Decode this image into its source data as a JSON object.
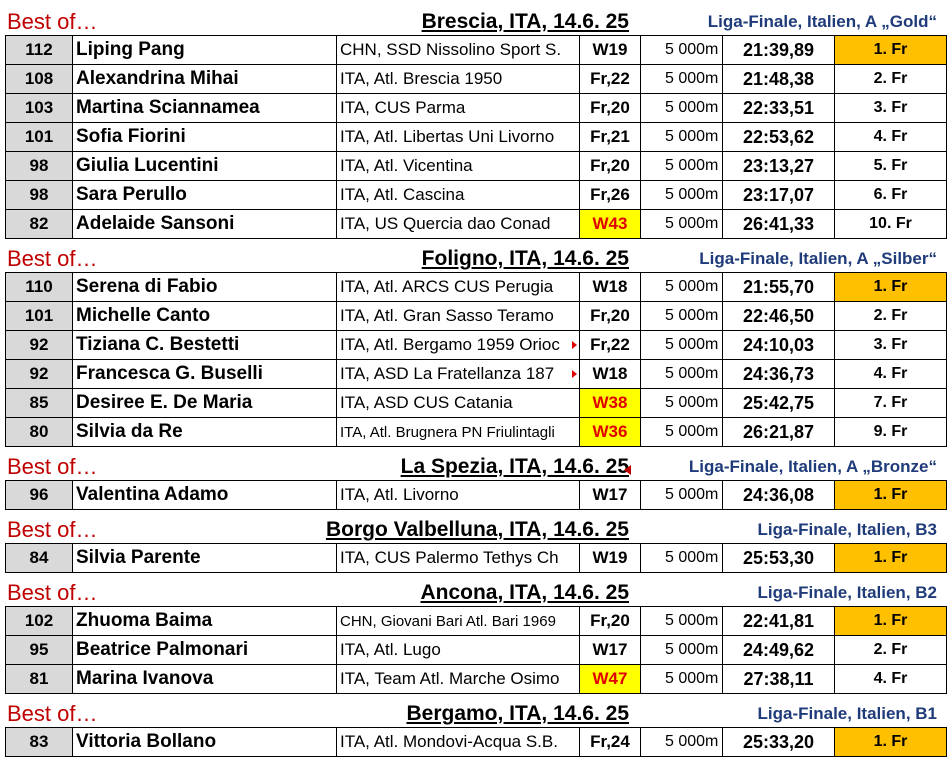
{
  "sections": [
    {
      "best_label": "Best of…",
      "venue": "Brescia, ITA, 14.6. 25",
      "competition": "Liga-Finale, Italien, A „Gold“",
      "rows": [
        {
          "points": "112",
          "name": "Liping Pang",
          "club": "CHN, SSD Nissolino Sport S.",
          "category": "W19",
          "distance": "5 000m",
          "time": "21:39,89",
          "rank": "1. Fr",
          "gold": true
        },
        {
          "points": "108",
          "name": "Alexandrina Mihai",
          "club": "ITA, Atl. Brescia 1950",
          "category": "Fr,22",
          "distance": "5 000m",
          "time": "21:48,38",
          "rank": "2. Fr"
        },
        {
          "points": "103",
          "name": "Martina Sciannamea",
          "club": "ITA, CUS Parma",
          "category": "Fr,20",
          "distance": "5 000m",
          "time": "22:33,51",
          "rank": "3. Fr"
        },
        {
          "points": "101",
          "name": "Sofia Fiorini",
          "club": "ITA, Atl. Libertas Uni Livorno",
          "category": "Fr,21",
          "distance": "5 000m",
          "time": "22:53,62",
          "rank": "4. Fr"
        },
        {
          "points": "98",
          "name": "Giulia Lucentini",
          "club": "ITA, Atl. Vicentina",
          "category": "Fr,20",
          "distance": "5 000m",
          "time": "23:13,27",
          "rank": "5. Fr"
        },
        {
          "points": "98",
          "name": "Sara Perullo",
          "club": "ITA, Atl. Cascina",
          "category": "Fr,26",
          "distance": "5 000m",
          "time": "23:17,07",
          "rank": "6. Fr"
        },
        {
          "points": "82",
          "name": "Adelaide Sansoni",
          "club": "ITA, US Quercia dao Conad",
          "category": "W43",
          "distance": "5 000m",
          "time": "26:41,33",
          "rank": "10. Fr",
          "yellow": true
        }
      ]
    },
    {
      "best_label": "Best of…",
      "venue": "Foligno, ITA, 14.6. 25",
      "competition": "Liga-Finale, Italien, A „Silber“",
      "rows": [
        {
          "points": "110",
          "name": "Serena di Fabio",
          "club": "ITA, Atl. ARCS CUS Perugia",
          "category": "W18",
          "distance": "5 000m",
          "time": "21:55,70",
          "rank": "1. Fr",
          "gold": true
        },
        {
          "points": "101",
          "name": "Michelle Canto",
          "club": "ITA, Atl. Gran Sasso Teramo",
          "category": "Fr,20",
          "distance": "5 000m",
          "time": "22:46,50",
          "rank": "2. Fr"
        },
        {
          "points": "92",
          "name": "Tiziana C. Bestetti",
          "club": "ITA, Atl. Bergamo 1959 Orioc",
          "category": "Fr,22",
          "distance": "5 000m",
          "time": "24:10,03",
          "rank": "3. Fr",
          "overflow": true
        },
        {
          "points": "92",
          "name": "Francesca G. Buselli",
          "club": "ITA, ASD La Fratellanza 187",
          "category": "W18",
          "distance": "5 000m",
          "time": "24:36,73",
          "rank": "4. Fr",
          "overflow": true
        },
        {
          "points": "85",
          "name": "Desiree E. De Maria",
          "club": "ITA, ASD CUS Catania",
          "category": "W38",
          "distance": "5 000m",
          "time": "25:42,75",
          "rank": "7. Fr",
          "yellow": true
        },
        {
          "points": "80",
          "name": "Silvia da Re",
          "club": "ITA, Atl. Brugnera PN Friulintagli",
          "category": "W36",
          "distance": "5 000m",
          "time": "26:21,87",
          "rank": "9. Fr",
          "yellow": true,
          "small": true
        }
      ]
    },
    {
      "best_label": "Best of…",
      "venue": "La Spezia, ITA, 14.6. 25",
      "competition": "Liga-Finale, Italien, A „Bronze“",
      "rows": [
        {
          "points": "96",
          "name": "Valentina Adamo",
          "club": "ITA, Atl. Livorno",
          "category": "W17",
          "distance": "5 000m",
          "time": "24:36,08",
          "rank": "1. Fr",
          "gold": true
        }
      ]
    },
    {
      "best_label": "Best of…",
      "venue": "Borgo Valbelluna, ITA, 14.6. 25",
      "competition": "Liga-Finale, Italien, B3",
      "rows": [
        {
          "points": "84",
          "name": "Silvia Parente",
          "club": "ITA, CUS Palermo Tethys Ch",
          "category": "W19",
          "distance": "5 000m",
          "time": "25:53,30",
          "rank": "1. Fr",
          "gold": true
        }
      ]
    },
    {
      "best_label": "Best of…",
      "venue": "Ancona, ITA, 14.6. 25",
      "competition": "Liga-Finale, Italien, B2",
      "rows": [
        {
          "points": "102",
          "name": "Zhuoma Baima",
          "club": "CHN, Giovani Bari Atl. Bari 1969",
          "category": "Fr,20",
          "distance": "5 000m",
          "time": "22:41,81",
          "rank": "1. Fr",
          "gold": true,
          "small": true
        },
        {
          "points": "95",
          "name": "Beatrice Palmonari",
          "club": "ITA, Atl. Lugo",
          "category": "W17",
          "distance": "5 000m",
          "time": "24:49,62",
          "rank": "2. Fr"
        },
        {
          "points": "81",
          "name": "Marina Ivanova",
          "club": "ITA, Team Atl. Marche Osimo",
          "category": "W47",
          "distance": "5 000m",
          "time": "27:38,11",
          "rank": "4. Fr",
          "yellow": true
        }
      ]
    },
    {
      "best_label": "Best of…",
      "venue": "Bergamo, ITA, 14.6. 25",
      "competition": "Liga-Finale, Italien, B1",
      "rows": [
        {
          "points": "83",
          "name": "Vittoria Bollano",
          "club": "ITA, Atl. Mondovi-Acqua S.B.",
          "category": "Fr,24",
          "distance": "5 000m",
          "time": "25:33,20",
          "rank": "1. Fr",
          "gold": true
        }
      ]
    }
  ]
}
